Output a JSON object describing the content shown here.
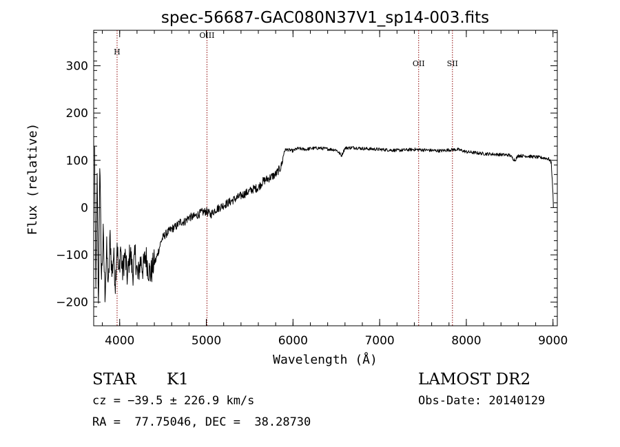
{
  "chart_data": {
    "type": "line",
    "title": "spec-56687-GAC080N37V1_sp14-003.fits",
    "xlabel": "Wavelength (Å)",
    "ylabel": "Flux (relative)",
    "xlim": [
      3700,
      9050
    ],
    "ylim": [
      -250,
      375
    ],
    "x_ticks": [
      4000,
      5000,
      6000,
      7000,
      8000,
      9000
    ],
    "y_ticks": [
      -200,
      -100,
      0,
      100,
      200,
      300
    ],
    "grid": false,
    "line_color": "#000000",
    "marker_color": "#8b0000",
    "lines": [
      {
        "label": "H",
        "x": 3970,
        "label_y": 330
      },
      {
        "label": "OIII",
        "x": 5007,
        "label_y": 365
      },
      {
        "label": "OII",
        "x": 7450,
        "label_y": 305
      },
      {
        "label": "SII",
        "x": 7840,
        "label_y": 305
      }
    ],
    "series": [
      {
        "x": [
          3710,
          3725,
          3740,
          3755,
          3770,
          3790,
          3810,
          3830,
          3850,
          3870,
          3890,
          3910,
          3930,
          3950,
          3970,
          3990,
          4010,
          4030,
          4060,
          4090,
          4120,
          4150,
          4180,
          4210,
          4240,
          4270,
          4300,
          4330,
          4360,
          4390,
          4420,
          4450,
          4480,
          4510,
          4540,
          4570,
          4600,
          4650,
          4700,
          4750,
          4800,
          4850,
          4900,
          4950,
          5000,
          5050,
          5100,
          5150,
          5200,
          5250,
          5300,
          5350,
          5400,
          5450,
          5500,
          5550,
          5600,
          5650,
          5700,
          5750,
          5800,
          5830,
          5860,
          5880,
          5900,
          5920,
          5950,
          6000,
          6050,
          6100,
          6150,
          6200,
          6300,
          6400,
          6500,
          6560,
          6600,
          6700,
          6800,
          6900,
          7000,
          7100,
          7200,
          7300,
          7400,
          7500,
          7600,
          7700,
          7800,
          7900,
          8000,
          8100,
          8200,
          8300,
          8400,
          8500,
          8560,
          8600,
          8700,
          8800,
          8900,
          8950,
          8980,
          9000,
          9005
        ],
        "y": [
          120,
          -180,
          60,
          -220,
          100,
          -150,
          -60,
          -180,
          -90,
          -170,
          -60,
          -140,
          -100,
          -160,
          -70,
          -150,
          -80,
          -140,
          -100,
          -150,
          -90,
          -140,
          -100,
          -150,
          -110,
          -130,
          -100,
          -130,
          -140,
          -120,
          -110,
          -90,
          -70,
          -60,
          -55,
          -50,
          -45,
          -40,
          -30,
          -30,
          -20,
          -20,
          -15,
          -10,
          -8,
          -15,
          -5,
          0,
          5,
          10,
          15,
          20,
          25,
          30,
          35,
          40,
          42,
          55,
          60,
          65,
          70,
          78,
          85,
          100,
          120,
          123,
          122,
          120,
          125,
          124,
          123,
          125,
          126,
          124,
          122,
          110,
          126,
          127,
          125,
          124,
          123,
          122,
          121,
          122,
          123,
          122,
          121,
          120,
          122,
          123,
          118,
          116,
          114,
          113,
          112,
          111,
          100,
          110,
          109,
          107,
          105,
          103,
          95,
          30,
          0
        ]
      }
    ],
    "info": {
      "object_class": "STAR",
      "subclass": "K1",
      "survey": "LAMOST DR2",
      "cz": "cz = −39.5 ± 226.9 km/s",
      "obs_date": "Obs-Date: 20140129",
      "radec": "RA =  77.75046, DEC =  38.28730"
    }
  }
}
